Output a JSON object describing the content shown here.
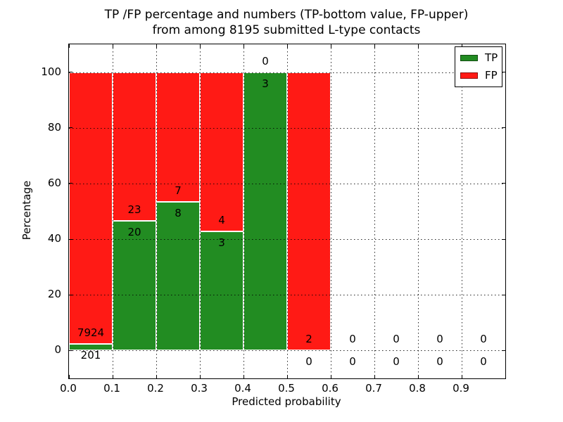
{
  "chart_data": {
    "type": "bar",
    "stacked": true,
    "title_line1": "TP /FP percentage and numbers (TP-bottom value, FP-upper)",
    "title_line2": "from among 8195 submitted L-type contacts",
    "xlabel": "Predicted probability",
    "ylabel": "Percentage",
    "xlim": [
      0.0,
      1.0
    ],
    "ylim": [
      -10,
      110
    ],
    "grid": "dotted",
    "xticks": [
      {
        "v": 0.0,
        "label": "0.0"
      },
      {
        "v": 0.1,
        "label": "0.1"
      },
      {
        "v": 0.2,
        "label": "0.2"
      },
      {
        "v": 0.3,
        "label": "0.3"
      },
      {
        "v": 0.4,
        "label": "0.4"
      },
      {
        "v": 0.5,
        "label": "0.5"
      },
      {
        "v": 0.6,
        "label": "0.6"
      },
      {
        "v": 0.7,
        "label": "0.7"
      },
      {
        "v": 0.8,
        "label": "0.8"
      },
      {
        "v": 0.9,
        "label": "0.9"
      }
    ],
    "yticks": [
      {
        "v": 0,
        "label": "0"
      },
      {
        "v": 20,
        "label": "20"
      },
      {
        "v": 40,
        "label": "40"
      },
      {
        "v": 60,
        "label": "60"
      },
      {
        "v": 80,
        "label": "80"
      },
      {
        "v": 100,
        "label": "100"
      }
    ],
    "bins": [
      {
        "range": [
          0.0,
          0.1
        ],
        "tp_count": 201,
        "fp_count": 7924,
        "tp_pct": 2.47,
        "fp_pct": 97.53
      },
      {
        "range": [
          0.1,
          0.2
        ],
        "tp_count": 20,
        "fp_count": 23,
        "tp_pct": 46.51,
        "fp_pct": 53.49
      },
      {
        "range": [
          0.2,
          0.3
        ],
        "tp_count": 8,
        "fp_count": 7,
        "tp_pct": 53.33,
        "fp_pct": 46.67
      },
      {
        "range": [
          0.3,
          0.4
        ],
        "tp_count": 3,
        "fp_count": 4,
        "tp_pct": 42.86,
        "fp_pct": 57.14
      },
      {
        "range": [
          0.4,
          0.5
        ],
        "tp_count": 3,
        "fp_count": 0,
        "tp_pct": 100,
        "fp_pct": 0
      },
      {
        "range": [
          0.5,
          0.6
        ],
        "tp_count": 0,
        "fp_count": 2,
        "tp_pct": 0,
        "fp_pct": 100
      },
      {
        "range": [
          0.6,
          0.7
        ],
        "tp_count": 0,
        "fp_count": 0,
        "tp_pct": 0,
        "fp_pct": 0
      },
      {
        "range": [
          0.7,
          0.8
        ],
        "tp_count": 0,
        "fp_count": 0,
        "tp_pct": 0,
        "fp_pct": 0
      },
      {
        "range": [
          0.8,
          0.9
        ],
        "tp_count": 0,
        "fp_count": 0,
        "tp_pct": 0,
        "fp_pct": 0
      },
      {
        "range": [
          0.9,
          1.0
        ],
        "tp_count": 0,
        "fp_count": 0,
        "tp_pct": 0,
        "fp_pct": 0
      }
    ],
    "legend": {
      "position": "upper right",
      "items": [
        {
          "label": "TP",
          "color": "#228c22"
        },
        {
          "label": "FP",
          "color": "#ff1a15"
        }
      ]
    },
    "colors": {
      "tp": "#228c22",
      "fp": "#ff1a15",
      "grid": "#000000",
      "text": "#000000",
      "background": "#ffffff"
    }
  }
}
